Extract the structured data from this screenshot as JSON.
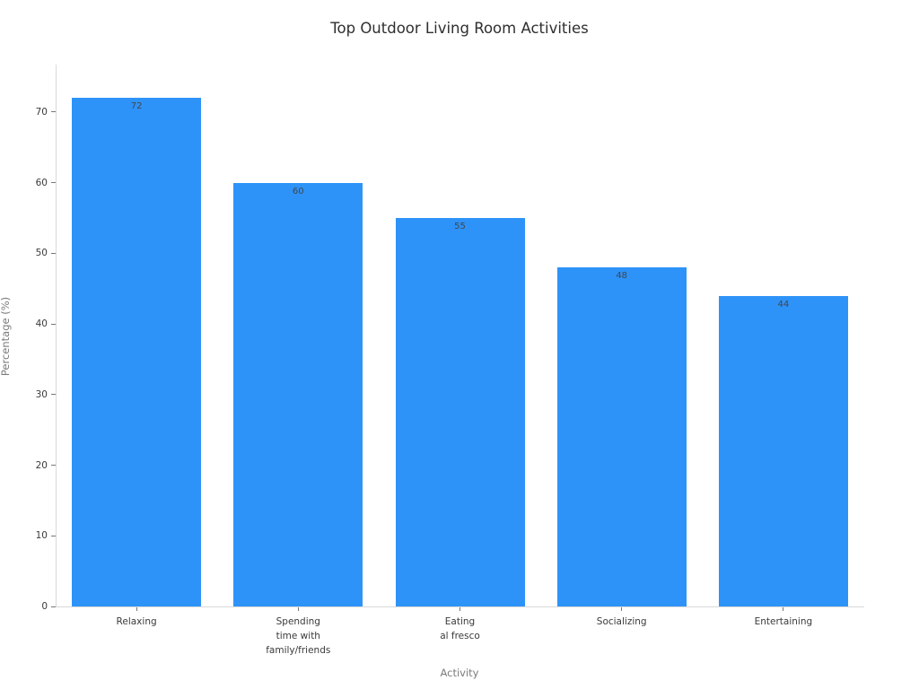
{
  "chart_data": {
    "type": "bar",
    "title": "Top Outdoor Living Room Activities",
    "xlabel": "Activity",
    "ylabel": "Percentage (%)",
    "categories": [
      "Relaxing",
      "Spending\ntime with\nfamily/friends",
      "Eating\nal fresco",
      "Socializing",
      "Entertaining"
    ],
    "values": [
      72,
      60,
      55,
      48,
      44
    ],
    "bar_labels": [
      "72",
      "60",
      "55",
      "48",
      "44"
    ],
    "yticks": [
      0,
      10,
      20,
      30,
      40,
      50,
      60,
      70
    ],
    "ylim": [
      0,
      76.7
    ],
    "grid": false,
    "legend": "none",
    "colors": {
      "bar": "#2e93f8",
      "title_text": "#2f2f2f",
      "tick_text": "#3a3a3a",
      "axis_title_text": "#7b7b7b",
      "value_label_text": "#40464e",
      "spine": "#d9d9d9"
    }
  }
}
